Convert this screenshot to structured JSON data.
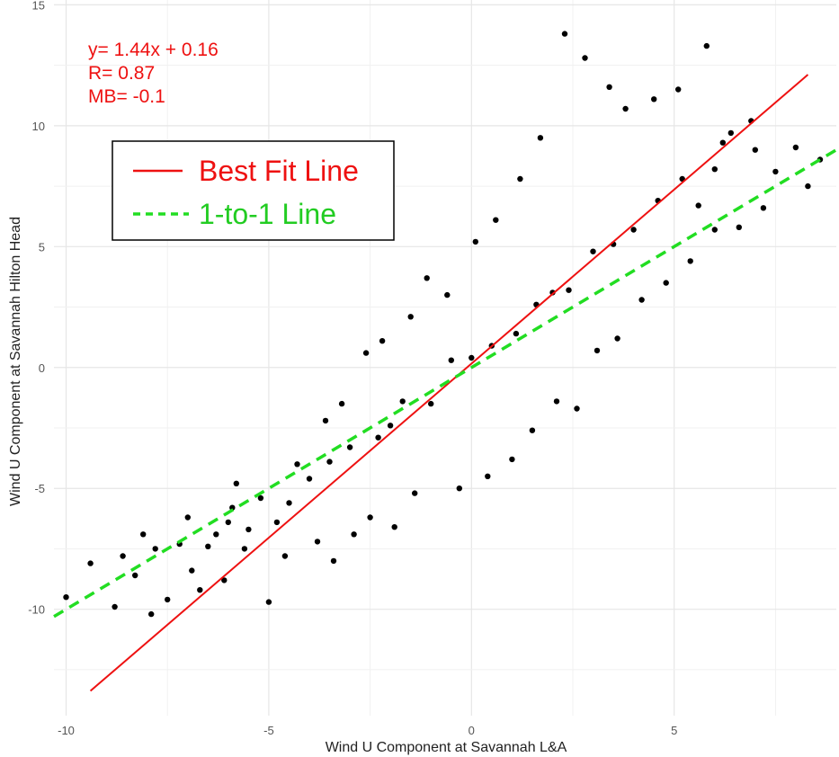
{
  "chart_data": {
    "type": "scatter",
    "xlabel": "Wind U Component at Savannah L&A",
    "ylabel": "Wind U Component at Savannah Hilton Head",
    "xlim": [
      -10.3,
      9.0
    ],
    "ylim": [
      -14.4,
      15.2
    ],
    "x_ticks": [
      -10,
      -5,
      0,
      5
    ],
    "y_ticks": [
      -10,
      -5,
      0,
      5,
      10,
      15
    ],
    "grid": true,
    "point_color": "#000000",
    "annotation": {
      "color": "#ee1111",
      "lines": [
        "y= 1.44x + 0.16",
        "R= 0.87",
        "MB= -0.1"
      ]
    },
    "lines": [
      {
        "name": "Best Fit Line",
        "slope": 1.44,
        "intercept": 0.16,
        "x_range": [
          -9.4,
          8.3
        ],
        "color": "#ee1111",
        "dash": "solid"
      },
      {
        "name": "1-to-1 Line",
        "slope": 1.0,
        "intercept": 0.0,
        "x_range": [
          -10.3,
          9.0
        ],
        "color": "#22dd22",
        "dash": "dashed"
      }
    ],
    "legend": {
      "position": "top-left",
      "entries": [
        {
          "name": "Best Fit Line",
          "color": "#ee1111",
          "dash": "solid"
        },
        {
          "name": "1-to-1 Line",
          "color": "#22dd22",
          "dash": "dashed"
        }
      ]
    },
    "points": [
      [
        -9.4,
        -8.1
      ],
      [
        -8.8,
        -9.9
      ],
      [
        -8.6,
        -7.8
      ],
      [
        -8.3,
        -8.6
      ],
      [
        -7.9,
        -10.2
      ],
      [
        -7.8,
        -7.5
      ],
      [
        -7.5,
        -9.6
      ],
      [
        -7.2,
        -7.3
      ],
      [
        -6.9,
        -8.4
      ],
      [
        -6.7,
        -9.2
      ],
      [
        -6.3,
        -6.9
      ],
      [
        -6.1,
        -8.8
      ],
      [
        -5.9,
        -5.8
      ],
      [
        -5.6,
        -7.5
      ],
      [
        -5.2,
        -5.4
      ],
      [
        -5.0,
        -9.7
      ],
      [
        -4.8,
        -6.4
      ],
      [
        -4.3,
        -4.0
      ],
      [
        -4.6,
        -7.8
      ],
      [
        -5.8,
        -4.8
      ],
      [
        -3.6,
        -2.2
      ],
      [
        -3.8,
        -7.2
      ],
      [
        -3.2,
        -1.5
      ],
      [
        -3.4,
        -8.0
      ],
      [
        -2.6,
        0.6
      ],
      [
        -2.9,
        -6.9
      ],
      [
        -2.2,
        1.1
      ],
      [
        -2.5,
        -6.2
      ],
      [
        -1.5,
        2.1
      ],
      [
        -1.9,
        -6.6
      ],
      [
        -1.1,
        3.7
      ],
      [
        -1.4,
        -5.2
      ],
      [
        -0.6,
        3.0
      ],
      [
        -0.3,
        -5.0
      ],
      [
        0.1,
        5.2
      ],
      [
        0.4,
        -4.5
      ],
      [
        0.6,
        6.1
      ],
      [
        1.0,
        -3.8
      ],
      [
        1.2,
        7.8
      ],
      [
        1.5,
        -2.6
      ],
      [
        1.7,
        9.5
      ],
      [
        2.1,
        -1.4
      ],
      [
        2.3,
        13.8
      ],
      [
        2.6,
        -1.7
      ],
      [
        2.8,
        12.8
      ],
      [
        3.1,
        0.7
      ],
      [
        3.4,
        11.6
      ],
      [
        3.6,
        1.2
      ],
      [
        3.8,
        10.7
      ],
      [
        4.2,
        2.8
      ],
      [
        4.5,
        11.1
      ],
      [
        4.8,
        3.5
      ],
      [
        5.1,
        11.5
      ],
      [
        5.4,
        4.4
      ],
      [
        5.8,
        13.3
      ],
      [
        6.0,
        5.7
      ],
      [
        6.4,
        9.7
      ],
      [
        6.6,
        5.8
      ],
      [
        6.9,
        10.2
      ],
      [
        7.2,
        6.6
      ],
      [
        7.5,
        8.1
      ],
      [
        8.0,
        9.1
      ],
      [
        8.3,
        7.5
      ],
      [
        8.6,
        8.6
      ],
      [
        -6.0,
        -6.4
      ],
      [
        -4.0,
        -4.6
      ],
      [
        -2.0,
        -2.4
      ],
      [
        0.0,
        0.4
      ],
      [
        2.0,
        3.1
      ],
      [
        4.0,
        5.7
      ],
      [
        6.0,
        8.2
      ],
      [
        -10.0,
        -9.5
      ],
      [
        -8.1,
        -6.9
      ],
      [
        -7.0,
        -6.2
      ],
      [
        -6.5,
        -7.4
      ],
      [
        -5.5,
        -6.7
      ],
      [
        -4.5,
        -5.6
      ],
      [
        -3.5,
        -3.9
      ],
      [
        -3.0,
        -3.3
      ],
      [
        -2.3,
        -2.9
      ],
      [
        -1.7,
        -1.4
      ],
      [
        -1.0,
        -1.5
      ],
      [
        -0.5,
        0.3
      ],
      [
        0.5,
        0.9
      ],
      [
        1.1,
        1.4
      ],
      [
        1.6,
        2.6
      ],
      [
        2.4,
        3.2
      ],
      [
        3.0,
        4.8
      ],
      [
        3.5,
        5.1
      ],
      [
        4.6,
        6.9
      ],
      [
        5.2,
        7.8
      ],
      [
        5.6,
        6.7
      ],
      [
        6.2,
        9.3
      ],
      [
        7.0,
        9.0
      ]
    ]
  }
}
